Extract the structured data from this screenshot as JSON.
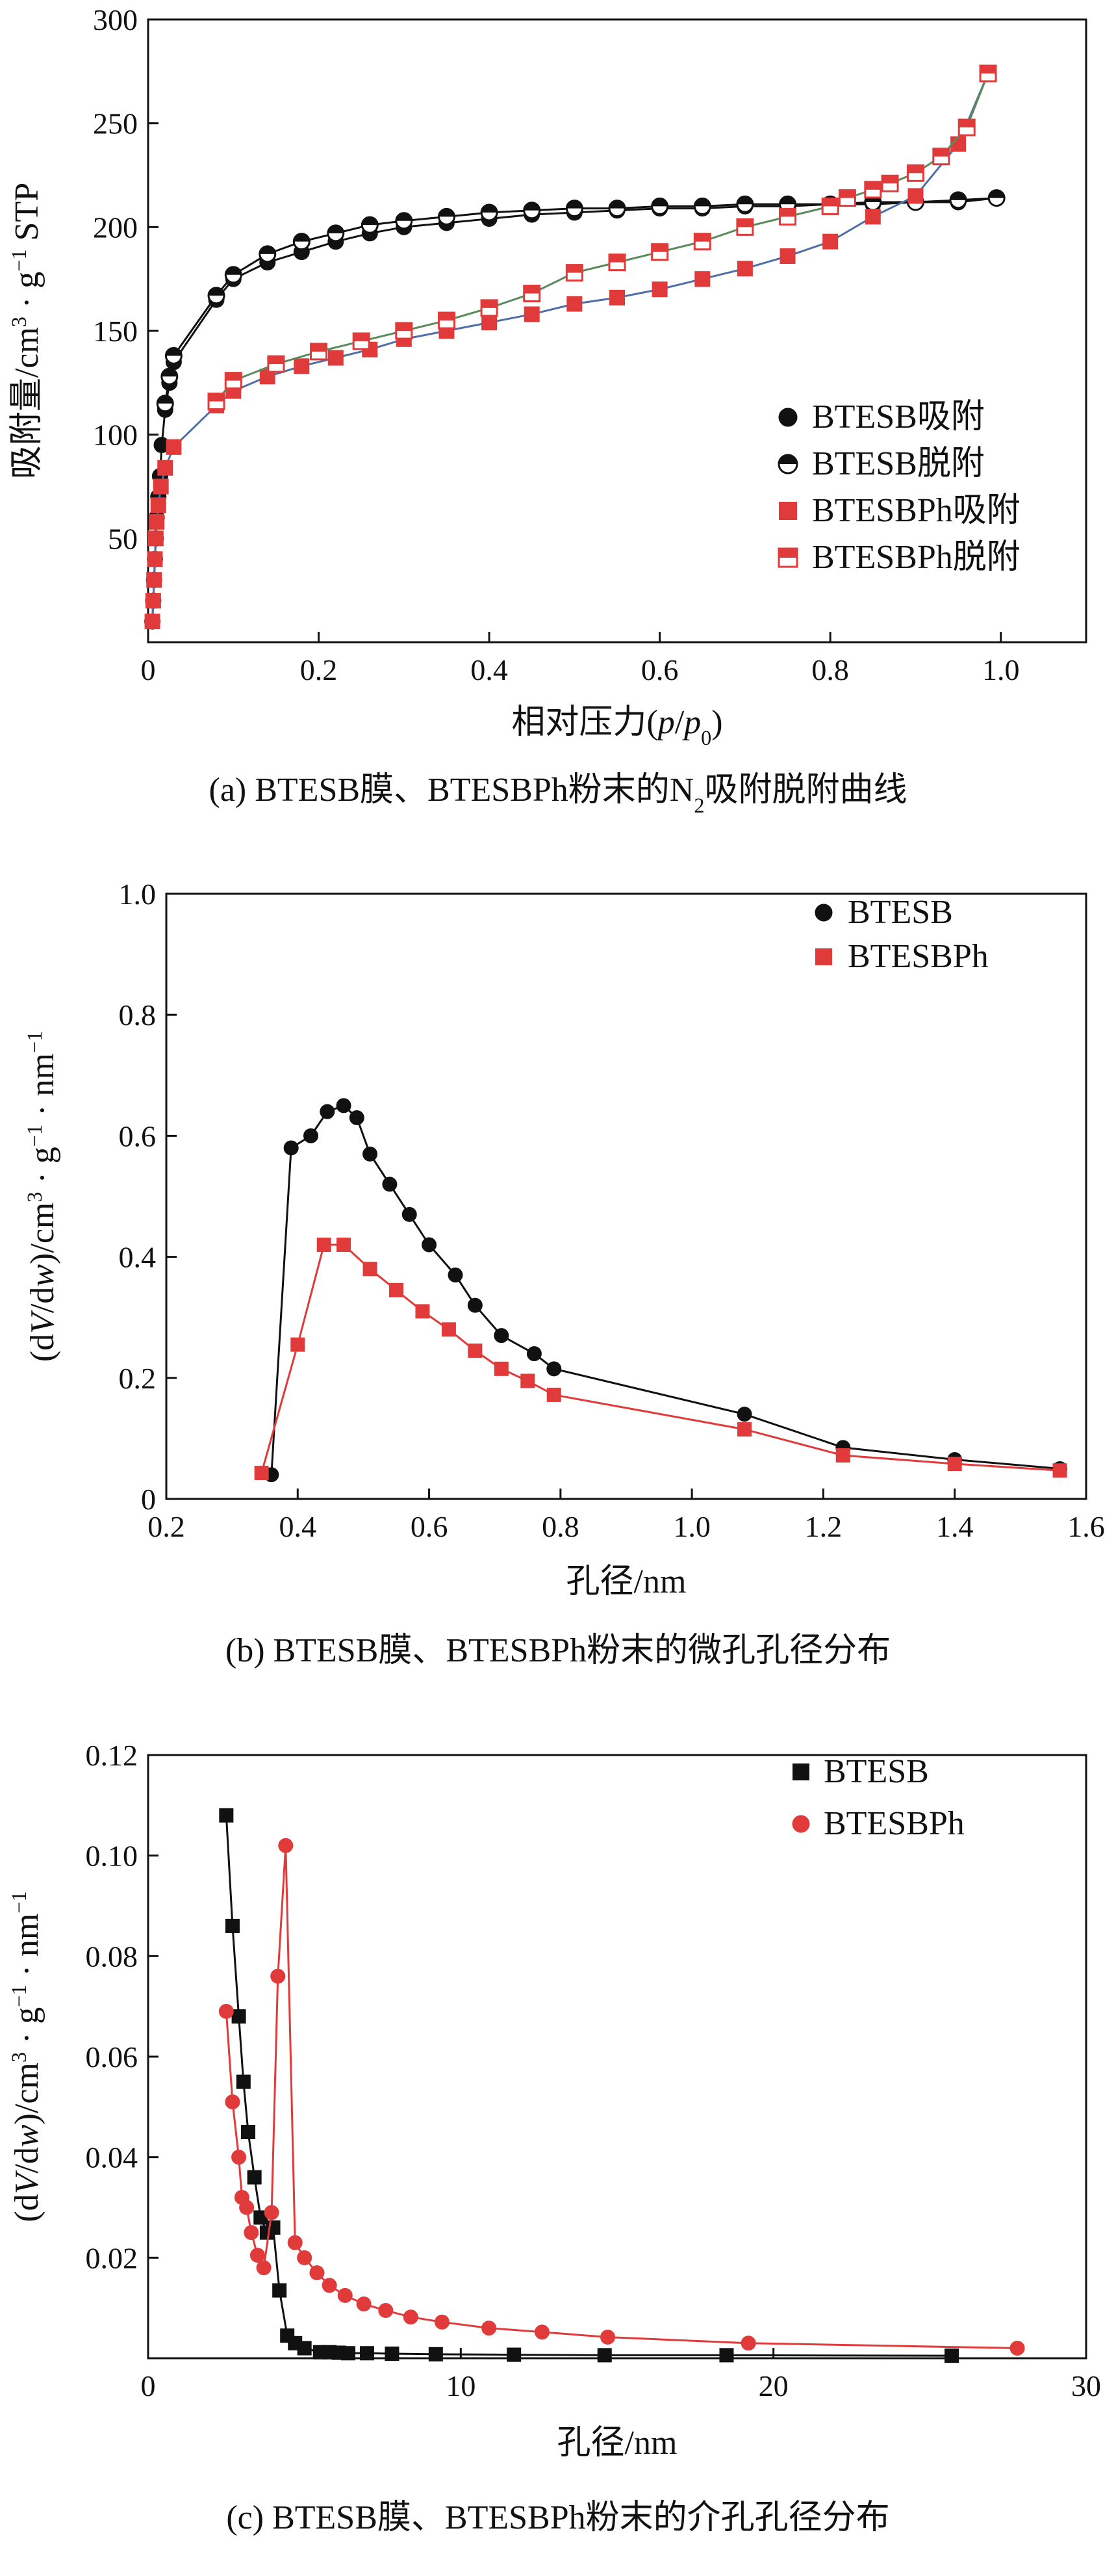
{
  "colors": {
    "black": "#111111",
    "red": "#e03a3a",
    "line_black": "#111111",
    "line_red": "#e03a3a",
    "line_blue": "#4f6fa8",
    "line_green": "#5a8a5a"
  },
  "chart_data": [
    {
      "id": "a",
      "type": "scatter",
      "title": "",
      "caption_parts": [
        "(a) BTESB膜、BTESBPh粉末的N",
        "2",
        "吸附脱附曲线"
      ],
      "xlabel_parts": [
        "相对压力(",
        "p",
        "/",
        "p",
        "0",
        ")"
      ],
      "ylabel_parts": [
        "吸附量/cm",
        "3",
        " · g",
        "−1",
        " STP"
      ],
      "xlim": [
        0,
        1.1
      ],
      "ylim": [
        0,
        300
      ],
      "xticks": [
        0,
        0.2,
        0.4,
        0.6,
        0.8,
        1.0
      ],
      "xtick_labels": [
        "0",
        "0.2",
        "0.4",
        "0.6",
        "0.8",
        "1.0"
      ],
      "yticks": [
        50,
        100,
        150,
        200,
        250,
        300
      ],
      "ytick_labels": [
        "50",
        "100",
        "150",
        "200",
        "250",
        "300"
      ],
      "legend_position": "center-right",
      "series": [
        {
          "name": "BTESB吸附",
          "marker": "circle",
          "style": "filled",
          "color": "#111111",
          "line_color": "#111111",
          "x": [
            0.005,
            0.006,
            0.007,
            0.008,
            0.009,
            0.01,
            0.012,
            0.014,
            0.016,
            0.02,
            0.025,
            0.03,
            0.08,
            0.1,
            0.14,
            0.18,
            0.22,
            0.26,
            0.3,
            0.35,
            0.4,
            0.45,
            0.5,
            0.55,
            0.6,
            0.65,
            0.7,
            0.75,
            0.8,
            0.85,
            0.9,
            0.95,
            0.995
          ],
          "y": [
            10,
            20,
            30,
            40,
            50,
            60,
            70,
            80,
            95,
            112,
            125,
            135,
            165,
            175,
            183,
            188,
            193,
            197,
            200,
            202,
            204,
            206,
            207,
            208,
            209,
            209,
            210,
            210,
            211,
            211,
            212,
            212,
            214
          ]
        },
        {
          "name": "BTESB脱附",
          "marker": "circle",
          "style": "half",
          "color": "#111111",
          "line_color": "#111111",
          "x": [
            0.995,
            0.95,
            0.9,
            0.85,
            0.8,
            0.75,
            0.7,
            0.65,
            0.6,
            0.55,
            0.5,
            0.45,
            0.4,
            0.35,
            0.3,
            0.26,
            0.22,
            0.18,
            0.14,
            0.1,
            0.08,
            0.03,
            0.025,
            0.02
          ],
          "y": [
            214,
            213,
            212,
            212,
            211,
            211,
            211,
            210,
            210,
            209,
            209,
            208,
            207,
            205,
            203,
            201,
            197,
            193,
            187,
            177,
            167,
            138,
            128,
            115
          ]
        },
        {
          "name": "BTESBPh吸附",
          "marker": "square",
          "style": "filled",
          "color": "#e03a3a",
          "line_color": "#4f6fa8",
          "x": [
            0.005,
            0.006,
            0.007,
            0.008,
            0.009,
            0.01,
            0.012,
            0.015,
            0.02,
            0.03,
            0.08,
            0.1,
            0.14,
            0.18,
            0.22,
            0.26,
            0.3,
            0.35,
            0.4,
            0.45,
            0.5,
            0.55,
            0.6,
            0.65,
            0.7,
            0.75,
            0.8,
            0.85,
            0.9,
            0.95,
            0.985
          ],
          "y": [
            10,
            20,
            30,
            40,
            50,
            58,
            66,
            75,
            84,
            94,
            114,
            121,
            128,
            133,
            137,
            141,
            146,
            150,
            154,
            158,
            163,
            166,
            170,
            175,
            180,
            186,
            193,
            205,
            215,
            240,
            274
          ]
        },
        {
          "name": "BTESBPh脱附",
          "marker": "square",
          "style": "half",
          "color": "#e03a3a",
          "line_color": "#5a8a5a",
          "x": [
            0.985,
            0.96,
            0.93,
            0.9,
            0.87,
            0.85,
            0.82,
            0.8,
            0.75,
            0.7,
            0.65,
            0.6,
            0.55,
            0.5,
            0.45,
            0.4,
            0.35,
            0.3,
            0.25,
            0.2,
            0.15,
            0.1,
            0.08
          ],
          "y": [
            274,
            248,
            234,
            226,
            221,
            218,
            214,
            210,
            205,
            200,
            193,
            188,
            183,
            178,
            168,
            161,
            155,
            150,
            145,
            140,
            134,
            126,
            116
          ]
        }
      ]
    },
    {
      "id": "b",
      "type": "line",
      "title": "",
      "caption_parts": [
        "(b)  BTESB膜、BTESBPh粉末的微孔孔径分布"
      ],
      "xlabel_parts": [
        "孔径/nm"
      ],
      "ylabel_parts": [
        "(d",
        "V",
        "/d",
        "w",
        ")/cm",
        "3",
        " · g",
        "−1",
        " · nm",
        "−1"
      ],
      "xlim": [
        0.2,
        1.6
      ],
      "ylim": [
        0,
        1.0
      ],
      "xticks": [
        0.2,
        0.4,
        0.6,
        0.8,
        1.0,
        1.2,
        1.4,
        1.6
      ],
      "xtick_labels": [
        "0.2",
        "0.4",
        "0.6",
        "0.8",
        "1.0",
        "1.2",
        "1.4",
        "1.6"
      ],
      "yticks": [
        0,
        0.2,
        0.4,
        0.6,
        0.8,
        1.0
      ],
      "ytick_labels": [
        "0",
        "0.2",
        "0.4",
        "0.6",
        "0.8",
        "1.0"
      ],
      "legend_position": "top-right",
      "series": [
        {
          "name": "BTESB",
          "marker": "circle",
          "style": "filled",
          "color": "#111111",
          "line_color": "#111111",
          "x": [
            0.36,
            0.39,
            0.42,
            0.445,
            0.47,
            0.49,
            0.51,
            0.54,
            0.57,
            0.6,
            0.64,
            0.67,
            0.71,
            0.76,
            0.79,
            1.08,
            1.23,
            1.4,
            1.56
          ],
          "y": [
            0.04,
            0.58,
            0.6,
            0.64,
            0.65,
            0.63,
            0.57,
            0.52,
            0.47,
            0.42,
            0.37,
            0.32,
            0.27,
            0.24,
            0.215,
            0.14,
            0.085,
            0.065,
            0.05
          ]
        },
        {
          "name": "BTESBPh",
          "marker": "square",
          "style": "filled",
          "color": "#e03a3a",
          "line_color": "#e03a3a",
          "x": [
            0.345,
            0.4,
            0.44,
            0.47,
            0.51,
            0.55,
            0.59,
            0.63,
            0.67,
            0.71,
            0.75,
            0.79,
            1.08,
            1.23,
            1.4,
            1.56
          ],
          "y": [
            0.043,
            0.255,
            0.42,
            0.42,
            0.38,
            0.345,
            0.31,
            0.28,
            0.245,
            0.215,
            0.195,
            0.172,
            0.115,
            0.072,
            0.058,
            0.047
          ]
        }
      ]
    },
    {
      "id": "c",
      "type": "line",
      "title": "",
      "caption_parts": [
        "(c) BTESB膜、BTESBPh粉末的介孔孔径分布"
      ],
      "xlabel_parts": [
        "孔径/nm"
      ],
      "ylabel_parts": [
        "(d",
        "V",
        "/d",
        "w",
        ")/cm",
        "3",
        " · g",
        "−1",
        " · nm",
        "−1"
      ],
      "xlim": [
        0,
        30
      ],
      "ylim": [
        0,
        0.12
      ],
      "xticks": [
        0,
        10,
        20,
        30
      ],
      "xtick_labels": [
        "0",
        "10",
        "20",
        "30"
      ],
      "yticks": [
        0.02,
        0.04,
        0.06,
        0.08,
        0.1,
        0.12
      ],
      "ytick_labels": [
        "0.02",
        "0.04",
        "0.06",
        "0.08",
        "0.10",
        "0.12"
      ],
      "legend_position": "top-right",
      "series": [
        {
          "name": "BTESB",
          "marker": "square",
          "style": "filled",
          "color": "#111111",
          "line_color": "#111111",
          "x": [
            2.5,
            2.7,
            2.9,
            3.05,
            3.2,
            3.4,
            3.6,
            3.8,
            4.0,
            4.2,
            4.45,
            4.7,
            5.0,
            5.5,
            5.8,
            6.1,
            6.4,
            7.0,
            7.8,
            9.2,
            11.7,
            14.6,
            18.5,
            25.7
          ],
          "y": [
            0.108,
            0.086,
            0.068,
            0.055,
            0.045,
            0.036,
            0.028,
            0.025,
            0.026,
            0.0135,
            0.0045,
            0.003,
            0.002,
            0.0012,
            0.0012,
            0.0011,
            0.001,
            0.001,
            0.0009,
            0.0008,
            0.0007,
            0.0006,
            0.0006,
            0.0005
          ]
        },
        {
          "name": "BTESBPh",
          "marker": "circle",
          "style": "filled",
          "color": "#e03a3a",
          "line_color": "#e03a3a",
          "x": [
            2.5,
            2.7,
            2.9,
            3.0,
            3.15,
            3.3,
            3.5,
            3.7,
            3.95,
            4.15,
            4.4,
            4.7,
            5.0,
            5.4,
            5.8,
            6.3,
            6.9,
            7.6,
            8.4,
            9.4,
            10.9,
            12.6,
            14.7,
            19.2,
            27.8
          ],
          "y": [
            0.069,
            0.051,
            0.04,
            0.032,
            0.03,
            0.025,
            0.0205,
            0.018,
            0.029,
            0.076,
            0.102,
            0.023,
            0.02,
            0.017,
            0.0145,
            0.0125,
            0.0108,
            0.0095,
            0.0082,
            0.0072,
            0.006,
            0.0052,
            0.0042,
            0.003,
            0.002
          ]
        }
      ]
    }
  ]
}
